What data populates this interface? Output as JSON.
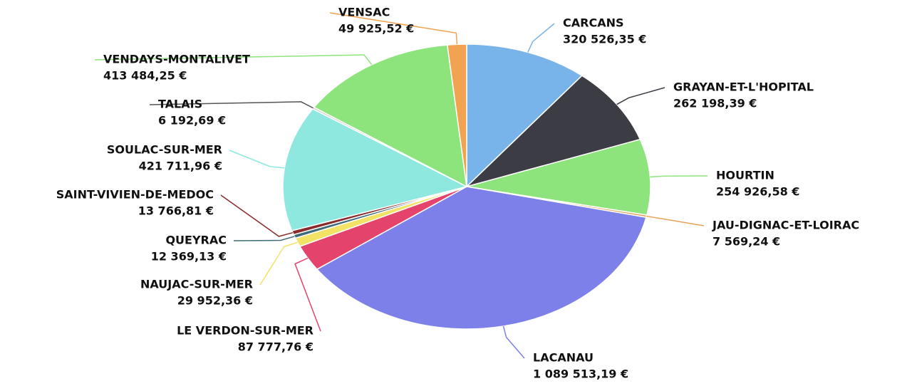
{
  "chart_data": {
    "type": "pie",
    "categories": [
      "CARCANS",
      "GRAYAN-ET-L'HOPITAL",
      "HOURTIN",
      "JAU-DIGNAC-ET-LOIRAC",
      "LACANAU",
      "LE VERDON-SUR-MER",
      "NAUJAC-SUR-MER",
      "QUEYRAC",
      "SAINT-VIVIEN-DE-MEDOC",
      "SOULAC-SUR-MER",
      "TALAIS",
      "VENDAYS-MONTALIVET",
      "VENSAC"
    ],
    "values": [
      320526.35,
      262198.39,
      254926.58,
      7569.24,
      1089513.19,
      87777.76,
      29952.36,
      12369.13,
      13766.81,
      421711.96,
      6192.69,
      413484.25,
      49925.52
    ],
    "value_labels": [
      "320 526,35 €",
      "262 198,39 €",
      "254 926,58 €",
      "7 569,24 €",
      "1 089 513,19 €",
      "87 777,76 €",
      "29 952,36 €",
      "12 369,13 €",
      "13 766,81 €",
      "421 711,96 €",
      "6 192,69 €",
      "413 484,25 €",
      "49 925,52 €"
    ],
    "colors": [
      "#78b4ea",
      "#3c3c44",
      "#8ee47c",
      "#e6a25a",
      "#7c80e8",
      "#e4436c",
      "#f2e266",
      "#3f6a78",
      "#8a2a2a",
      "#8ee8e0",
      "#c8c8c8",
      "#8ee47c",
      "#f2a352"
    ]
  }
}
